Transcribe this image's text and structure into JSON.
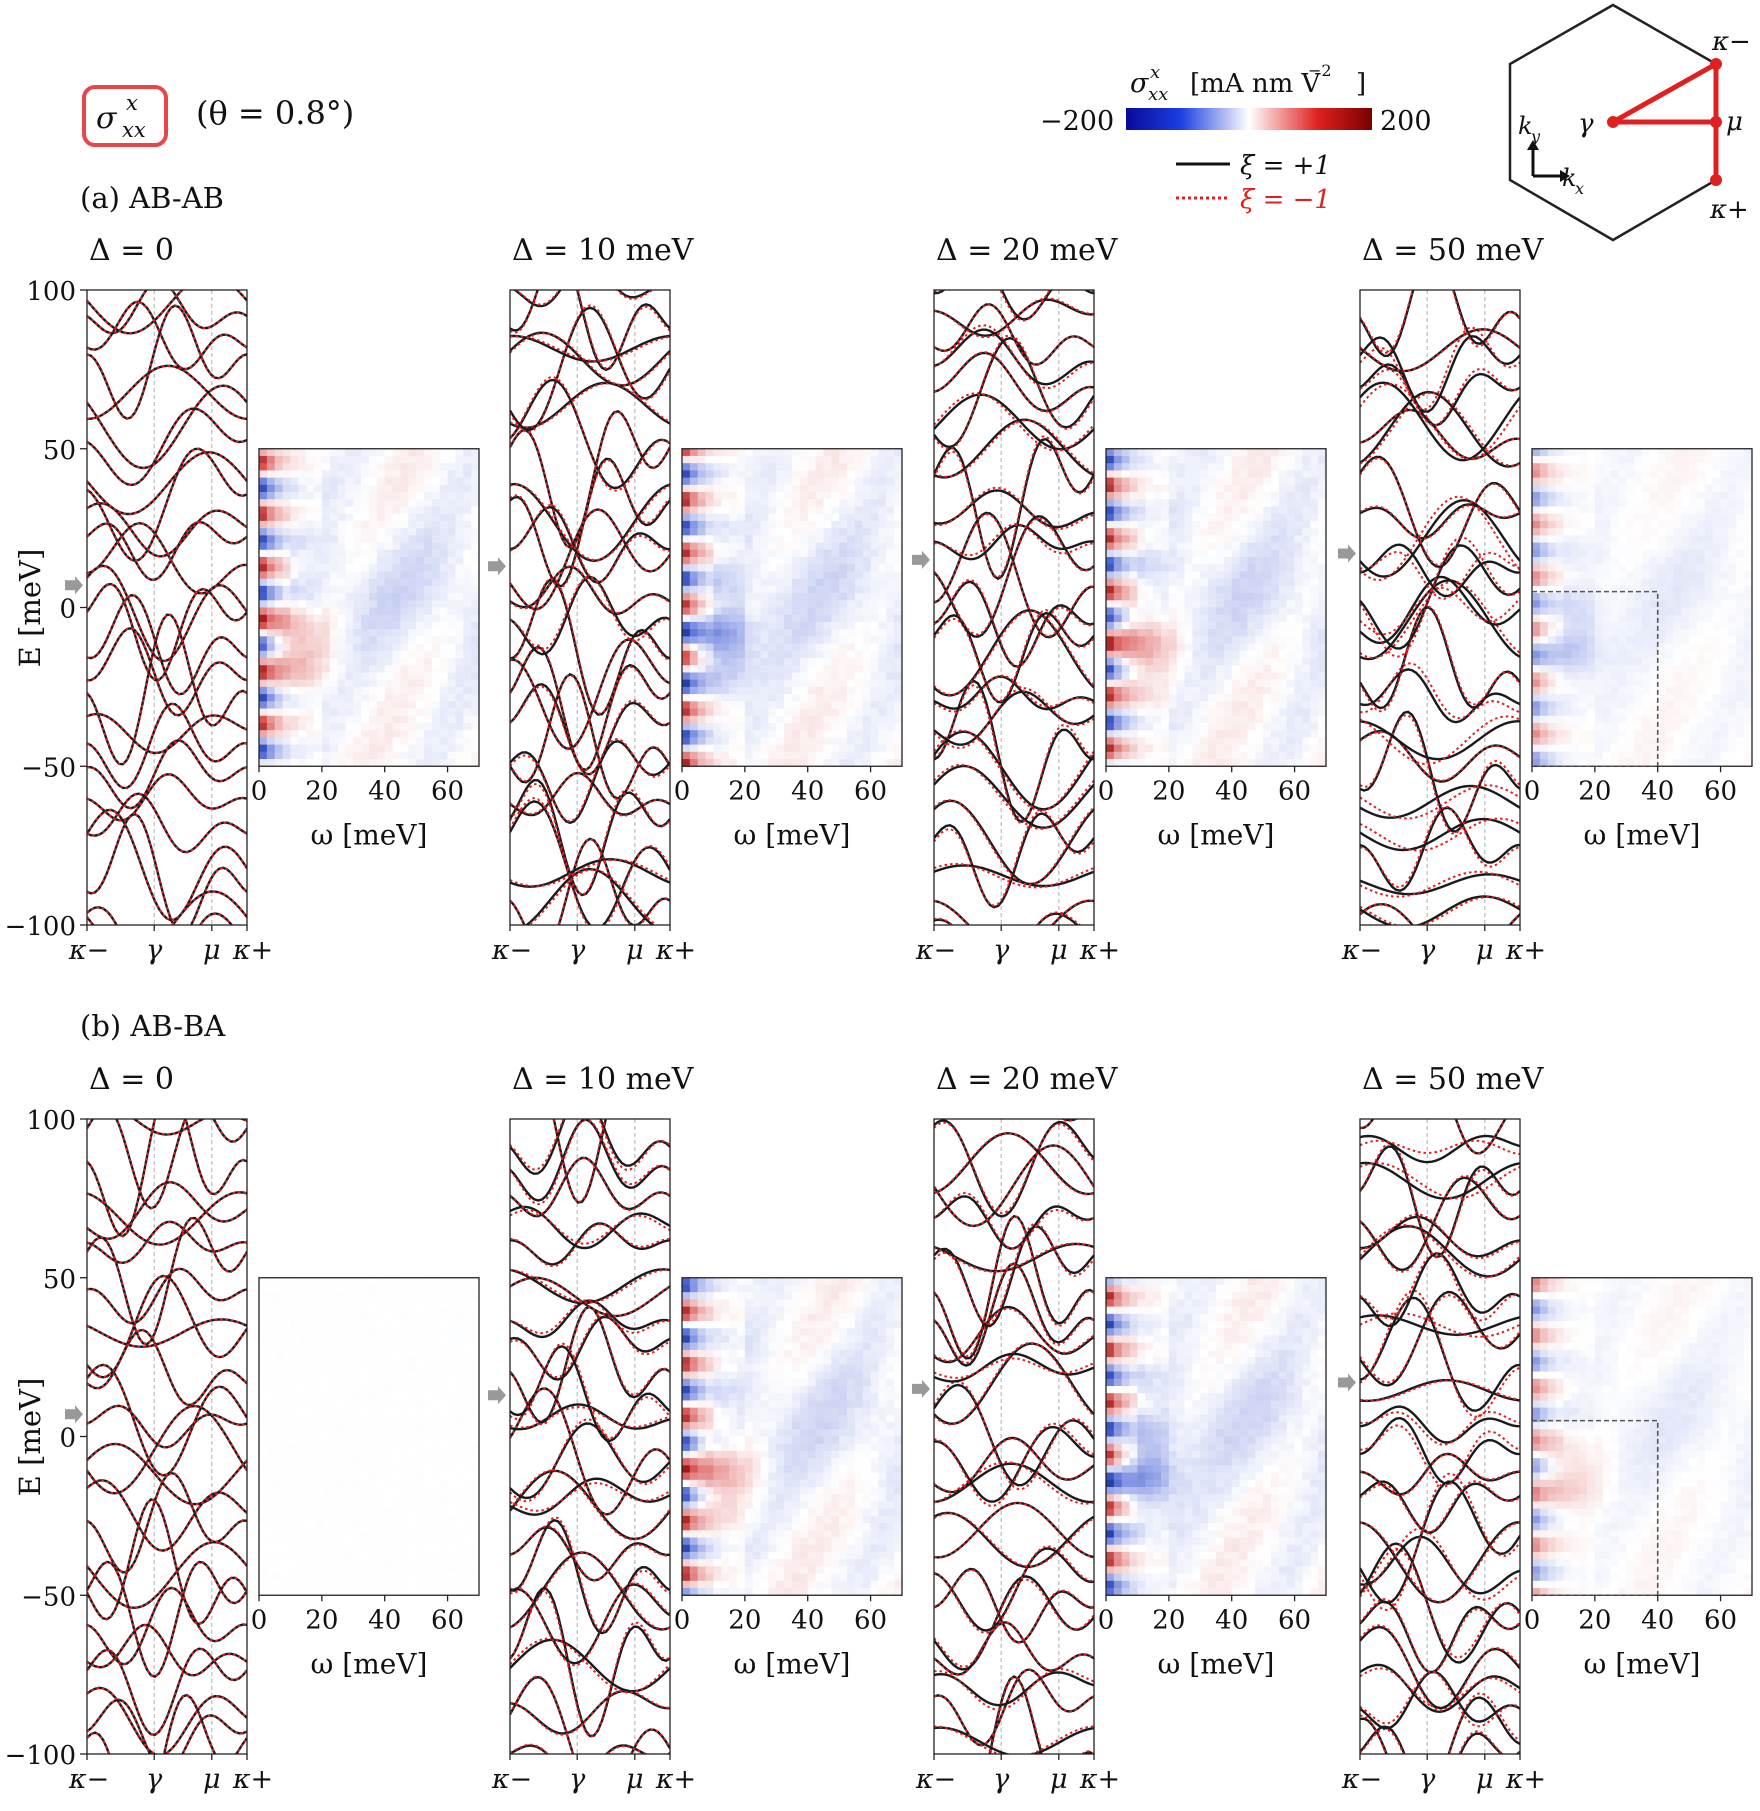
{
  "header": {
    "quantity_symbol": "σ",
    "quantity_sup": "x",
    "quantity_sub": "xx",
    "twist_label": "(θ = 0.8°)"
  },
  "colorbar": {
    "symbol": "σ",
    "sup": "x",
    "sub": "xx",
    "unit": "[mA nm V",
    "unit_exp": "−2",
    "unit_close": "]",
    "min_label": "−200",
    "max_label": "200",
    "colors": {
      "neg": "#0a0aa0",
      "zero": "#ffffff",
      "pos": "#8a0000"
    }
  },
  "legend": {
    "valley_plus": "ξ = +1",
    "valley_minus": "ξ = −1",
    "color_plus": "#111111",
    "color_minus": "#e02020"
  },
  "bz_inset": {
    "path_color": "#e02020",
    "labels": {
      "kminus": "κ−",
      "kplus": "κ+",
      "gamma": "γ",
      "mu": "μ",
      "ky": "k",
      "ky_sub": "y",
      "kx": "k",
      "kx_sub": "x"
    }
  },
  "chart_data": {
    "type": "heatmap",
    "band_axis": {
      "ylabel": "E [meV]",
      "ylim": [
        -100,
        100
      ],
      "yticks": [
        "100",
        "50",
        "0",
        "−50",
        "−100"
      ],
      "xticks": [
        "κ−",
        "γ",
        "μ",
        "κ+"
      ]
    },
    "map_axis": {
      "xlabel": "ω [meV]",
      "xlim": [
        0,
        70
      ],
      "ylim": [
        -50,
        50
      ],
      "xticks": [
        "0",
        "20",
        "40",
        "60"
      ]
    },
    "rows": [
      {
        "label": "(a) AB-AB",
        "panels": [
          {
            "delta": "Δ = 0",
            "fermi_energy": 7,
            "signal": 1.0,
            "zoom_box": false
          },
          {
            "delta": "Δ = 10 meV",
            "fermi_energy": 13,
            "signal": 1.0,
            "zoom_box": false
          },
          {
            "delta": "Δ = 20 meV",
            "fermi_energy": 15,
            "signal": 1.0,
            "zoom_box": false
          },
          {
            "delta": "Δ = 50 meV",
            "fermi_energy": 17,
            "signal": 0.55,
            "zoom_box": true,
            "zoom_omega": [
              0,
              40
            ],
            "zoom_energy": [
              -50,
              5
            ]
          }
        ]
      },
      {
        "label": "(b) AB-BA",
        "panels": [
          {
            "delta": "Δ = 0",
            "fermi_energy": 7,
            "signal": 0.0,
            "zoom_box": false
          },
          {
            "delta": "Δ = 10 meV",
            "fermi_energy": 13,
            "signal": 1.0,
            "zoom_box": false
          },
          {
            "delta": "Δ = 20 meV",
            "fermi_energy": 15,
            "signal": 1.0,
            "zoom_box": false
          },
          {
            "delta": "Δ = 50 meV",
            "fermi_energy": 17,
            "signal": 0.55,
            "zoom_box": true,
            "zoom_omega": [
              0,
              40
            ],
            "zoom_energy": [
              -50,
              5
            ]
          }
        ]
      }
    ]
  }
}
